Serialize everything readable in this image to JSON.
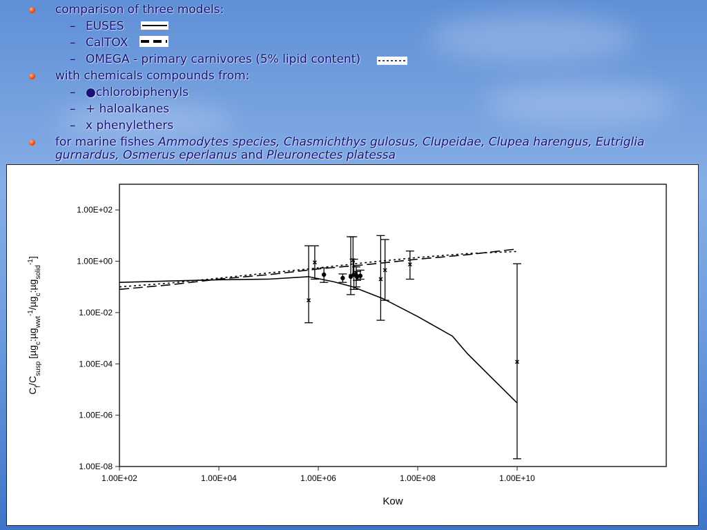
{
  "bullets": {
    "models_heading": "comparison of three models:",
    "model_euses": "EUSES",
    "model_caltox": "CalTOX",
    "model_omega": "OMEGA - primary carnivores (5% lipid content)",
    "chemicals_heading": "with chemicals compounds from:",
    "chem_1": "●chlorobiphenyls",
    "chem_2": "+ haloalkanes",
    "chem_3": "x phenylethers",
    "fishes_prefix": "for marine fishes ",
    "fishes_italic_1": "Ammodytes species, Chasmichthys gulosus, Clupeidae, Clupea harengus, Eutriglia",
    "fishes_italic_2": "gurnardus, Osmerus eperlanus",
    "fishes_and": " and ",
    "fishes_italic_3": "Pleuronectes platessa",
    "dash_glyph": "–"
  },
  "colors": {
    "text": "#16127a",
    "bullet": "#e04b10",
    "line": "#000000"
  },
  "chart_data": {
    "type": "scatter",
    "xlabel": "Kow",
    "ylabel_parts": {
      "c": "C",
      "f": "f",
      "slash": "/C",
      "susp": "susp",
      "open": " [µg",
      "c1": "c",
      "colon1": ":µg",
      "wwt": "wwt",
      "exp1": "-1",
      "slash2": "/µg",
      "c2": "c",
      "colon2": ":µg",
      "solid": "solid",
      "exp2": "-1",
      "close": "]"
    },
    "x_scale": "log",
    "y_scale": "log",
    "xlim": [
      100,
      10000000000000
    ],
    "ylim": [
      1e-08,
      1000
    ],
    "x_ticks": [
      {
        "value": 100,
        "label": "1.00E+02"
      },
      {
        "value": 10000,
        "label": "1.00E+04"
      },
      {
        "value": 1000000,
        "label": "1.00E+06"
      },
      {
        "value": 100000000,
        "label": "1.00E+08"
      },
      {
        "value": 10000000000,
        "label": "1.00E+10"
      }
    ],
    "y_ticks": [
      {
        "value": 100,
        "label": "1.00E+02"
      },
      {
        "value": 1,
        "label": "1.00E+00"
      },
      {
        "value": 0.01,
        "label": "1.00E-02"
      },
      {
        "value": 0.0001,
        "label": "1.00E-04"
      },
      {
        "value": 1e-06,
        "label": "1.00E-06"
      },
      {
        "value": 1e-08,
        "label": "1.00E-08"
      }
    ],
    "grid": false,
    "series": [
      {
        "name": "EUSES",
        "style": "solid",
        "x": [
          100,
          1000,
          10000,
          100000,
          630000,
          2000000,
          5000000,
          20000000,
          100000000,
          500000000,
          1000000000,
          3000000000,
          10000000000
        ],
        "y": [
          0.15,
          0.17,
          0.19,
          0.2,
          0.25,
          0.16,
          0.1,
          0.035,
          0.007,
          0.0012,
          0.00025,
          3e-05,
          3e-06
        ]
      },
      {
        "name": "CalTOX",
        "style": "dashed",
        "x": [
          100,
          1000,
          10000,
          100000,
          1000000,
          10000000,
          100000000,
          1000000000,
          10000000000
        ],
        "y": [
          0.08,
          0.12,
          0.2,
          0.3,
          0.5,
          0.75,
          1.2,
          1.8,
          3.0
        ]
      },
      {
        "name": "OMEGA - primary carnivores (5% lipid content)",
        "style": "dotted",
        "x": [
          100,
          1000,
          10000,
          100000,
          1000000,
          10000000,
          100000000,
          1000000000,
          10000000000
        ],
        "y": [
          0.1,
          0.14,
          0.22,
          0.35,
          0.55,
          0.9,
          1.4,
          2.0,
          2.4
        ]
      }
    ],
    "points": [
      {
        "group": "chlorobiphenyls",
        "marker": "dot",
        "x": 1300000,
        "y": 0.3,
        "ylo": 0.15,
        "yhi": 0.55
      },
      {
        "group": "chlorobiphenyls",
        "marker": "dot",
        "x": 3100000,
        "y": 0.22,
        "ylo": 0.15,
        "yhi": 0.32
      },
      {
        "group": "chlorobiphenyls",
        "marker": "dot",
        "x": 4500000,
        "y": 0.25,
        "ylo": 0.05,
        "yhi": 9.0
      },
      {
        "group": "chlorobiphenyls",
        "marker": "dot",
        "x": 5200000,
        "y": 0.3,
        "ylo": 0.08,
        "yhi": 1.2
      },
      {
        "group": "chlorobiphenyls",
        "marker": "dot",
        "x": 6000000,
        "y": 0.25,
        "ylo": 0.18,
        "yhi": 0.4
      },
      {
        "group": "chlorobiphenyls",
        "marker": "dot",
        "x": 7000000,
        "y": 0.27,
        "ylo": 0.2,
        "yhi": 0.45
      },
      {
        "group": "phenylethers",
        "marker": "x",
        "x": 640000,
        "y": 0.03,
        "ylo": 0.004,
        "yhi": 4.0
      },
      {
        "group": "phenylethers",
        "marker": "x",
        "x": 850000,
        "y": 0.9,
        "ylo": 0.2,
        "yhi": 4.0
      },
      {
        "group": "phenylethers",
        "marker": "x",
        "x": 5000000,
        "y": 1.1,
        "ylo": 0.3,
        "yhi": 9.0
      },
      {
        "group": "phenylethers",
        "marker": "x",
        "x": 5800000,
        "y": 0.35,
        "ylo": 0.1,
        "yhi": 0.6
      },
      {
        "group": "phenylethers",
        "marker": "x",
        "x": 18000000,
        "y": 0.2,
        "ylo": 0.005,
        "yhi": 10.0
      },
      {
        "group": "phenylethers",
        "marker": "x",
        "x": 22000000,
        "y": 0.45,
        "ylo": 0.03,
        "yhi": 7.0
      },
      {
        "group": "phenylethers",
        "marker": "x",
        "x": 70000000,
        "y": 0.75,
        "ylo": 0.2,
        "yhi": 2.5
      },
      {
        "group": "phenylethers",
        "marker": "x",
        "x": 10000000000,
        "y": 0.00012,
        "ylo": 2e-08,
        "yhi": 0.8
      }
    ]
  }
}
